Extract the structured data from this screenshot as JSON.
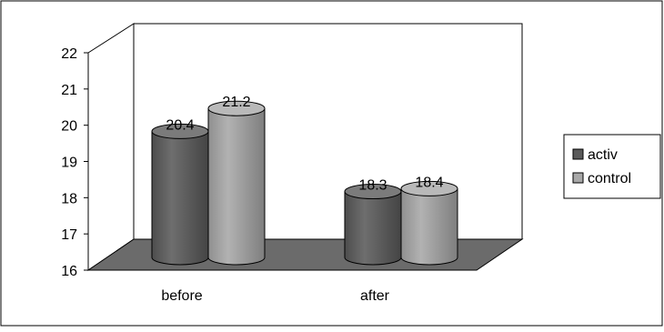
{
  "chart_data": {
    "type": "bar",
    "title": "",
    "xlabel": "",
    "ylabel": "",
    "categories": [
      "before",
      "after"
    ],
    "series": [
      {
        "name": "activ",
        "values": [
          20.4,
          18.3
        ],
        "color": "#5a5a5a"
      },
      {
        "name": "control",
        "values": [
          21.2,
          18.4
        ],
        "color": "#a8a8a8"
      }
    ],
    "ylim": [
      16,
      22
    ],
    "yticks": [
      16,
      17,
      18,
      19,
      20,
      21,
      22
    ],
    "data_labels": [
      "20.4",
      "21.2",
      "18.3",
      "18.4"
    ],
    "grid": false,
    "legend": "right",
    "floor_color": "#6b6b6b",
    "style": "3d-cylinder"
  }
}
